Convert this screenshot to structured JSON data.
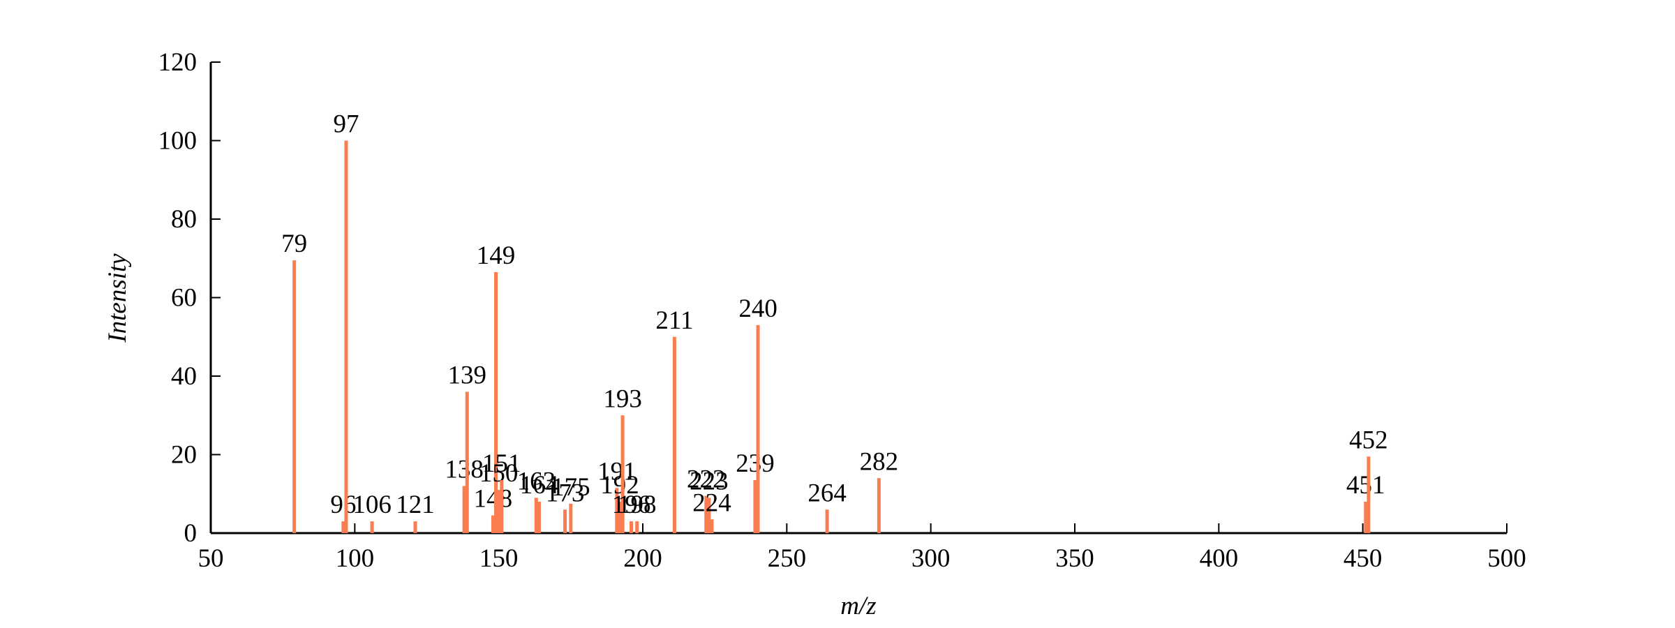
{
  "chart_data": {
    "type": "bar",
    "xlabel": "m/z",
    "ylabel": "Intensity",
    "x": [
      79,
      96,
      97,
      106,
      121,
      138,
      139,
      148,
      149,
      150,
      151,
      163,
      164,
      173,
      175,
      191,
      192,
      193,
      196,
      198,
      211,
      222,
      223,
      224,
      239,
      240,
      264,
      282,
      451,
      452
    ],
    "values": [
      69.5,
      3,
      100,
      3,
      3,
      12,
      36,
      4.5,
      66.5,
      11,
      13.5,
      9,
      8,
      6,
      7.5,
      11.5,
      8,
      30,
      3,
      3,
      50,
      9.5,
      9,
      3.5,
      13.5,
      53,
      6,
      14,
      8,
      19.5
    ],
    "color": "#fa7d50",
    "xlim": [
      50,
      500
    ],
    "xticks": [
      50,
      100,
      150,
      200,
      250,
      300,
      350,
      400,
      450,
      500
    ],
    "ylim": [
      0,
      120
    ],
    "yticks": [
      0,
      20,
      40,
      60,
      80,
      100,
      120
    ]
  }
}
